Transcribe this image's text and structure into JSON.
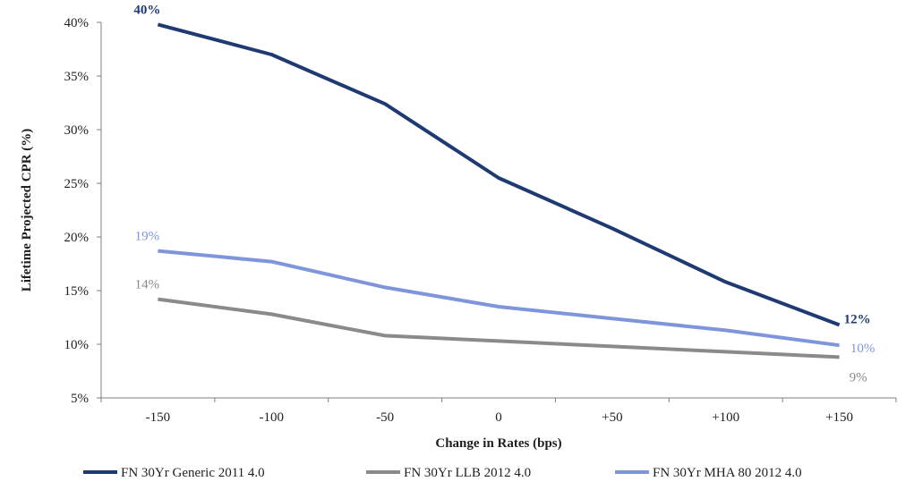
{
  "chart_data": {
    "type": "line",
    "xlabel": "Change in Rates (bps)",
    "ylabel": "Lifetime Projected CPR (%)",
    "categories": [
      "-150",
      "-100",
      "-50",
      "0",
      "+50",
      "+100",
      "+150"
    ],
    "y_ticks": [
      "5%",
      "10%",
      "15%",
      "20%",
      "25%",
      "30%",
      "35%",
      "40%"
    ],
    "ylim": [
      5,
      40
    ],
    "grid": false,
    "legend_position": "bottom",
    "series": [
      {
        "name": "FN 30Yr Generic 2011 4.0",
        "color": "#1f3a73",
        "values": [
          39.8,
          37.0,
          32.4,
          25.5,
          20.8,
          15.8,
          11.8
        ],
        "labels": [
          {
            "index": 0,
            "text": "40%"
          },
          {
            "index": 6,
            "text": "12%"
          }
        ]
      },
      {
        "name": "FN 30Yr LLB 2012 4.0",
        "color": "#8a8a8a",
        "values": [
          14.2,
          12.8,
          10.8,
          10.3,
          9.8,
          9.3,
          8.8
        ],
        "labels": [
          {
            "index": 0,
            "text": "14%"
          },
          {
            "index": 6,
            "text": "9%"
          }
        ]
      },
      {
        "name": "FN 30Yr MHA 80 2012 4.0",
        "color": "#7f95db",
        "values": [
          18.7,
          17.7,
          15.3,
          13.5,
          12.4,
          11.3,
          9.9
        ],
        "labels": [
          {
            "index": 0,
            "text": "19%"
          },
          {
            "index": 6,
            "text": "10%"
          }
        ]
      }
    ]
  }
}
